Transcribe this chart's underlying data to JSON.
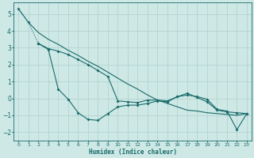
{
  "xlabel": "Humidex (Indice chaleur)",
  "xlim": [
    -0.5,
    23.5
  ],
  "ylim": [
    -2.5,
    5.7
  ],
  "yticks": [
    -2,
    -1,
    0,
    1,
    2,
    3,
    4,
    5
  ],
  "xticks": [
    0,
    1,
    2,
    3,
    4,
    5,
    6,
    7,
    8,
    9,
    10,
    11,
    12,
    13,
    14,
    15,
    16,
    17,
    18,
    19,
    20,
    21,
    22,
    23
  ],
  "bg_color": "#cde8e5",
  "line_color": "#1a6b6b",
  "grid_color": "#b0d0ce",
  "line1_x": [
    0,
    1,
    2
  ],
  "line1_y": [
    5.3,
    4.5,
    3.25
  ],
  "line2_x": [
    2,
    3,
    4,
    5,
    6,
    7,
    8,
    9,
    10,
    11,
    12,
    13,
    14,
    15,
    16,
    17,
    18,
    19,
    20,
    21,
    22,
    23
  ],
  "line2_y": [
    3.25,
    2.9,
    0.55,
    -0.05,
    -0.85,
    -1.25,
    -1.3,
    -0.9,
    -0.5,
    -0.4,
    -0.4,
    -0.3,
    -0.15,
    -0.2,
    0.1,
    0.2,
    0.1,
    -0.05,
    -0.65,
    -0.75,
    -1.85,
    -0.9
  ],
  "line3_x": [
    2,
    3,
    4,
    5,
    6,
    7,
    8,
    9,
    10,
    11,
    12,
    13,
    14,
    15,
    16,
    17,
    18,
    19,
    20,
    21,
    22,
    23
  ],
  "line3_y": [
    3.25,
    2.95,
    2.8,
    2.6,
    2.3,
    2.0,
    1.65,
    1.3,
    -0.15,
    -0.2,
    -0.25,
    -0.1,
    -0.1,
    -0.15,
    0.1,
    0.3,
    0.05,
    -0.2,
    -0.7,
    -0.8,
    -0.85,
    -0.9
  ],
  "line4_x": [
    0,
    1,
    2,
    3,
    4,
    5,
    6,
    7,
    8,
    9,
    10,
    11,
    12,
    13,
    14,
    15,
    16,
    17,
    18,
    19,
    20,
    21,
    22,
    23
  ],
  "line4_y": [
    5.3,
    4.5,
    3.9,
    3.5,
    3.2,
    2.85,
    2.55,
    2.2,
    1.9,
    1.55,
    1.2,
    0.85,
    0.55,
    0.2,
    -0.1,
    -0.3,
    -0.5,
    -0.7,
    -0.75,
    -0.85,
    -0.9,
    -0.95,
    -1.0,
    -0.9
  ]
}
